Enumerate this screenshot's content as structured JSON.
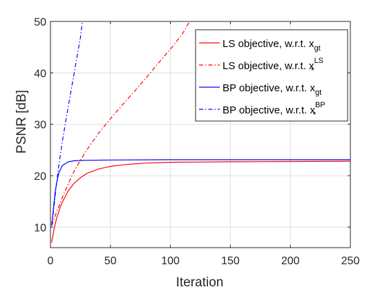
{
  "chart_data": {
    "type": "line",
    "xlabel": "Iteration",
    "ylabel": "PSNR [dB]",
    "xlim": [
      0,
      250
    ],
    "ylim": [
      6,
      50
    ],
    "xticks": [
      0,
      50,
      100,
      150,
      200,
      250
    ],
    "yticks": [
      10,
      20,
      30,
      40,
      50
    ],
    "xtick_labels": [
      "0",
      "50",
      "100",
      "150",
      "200",
      "250"
    ],
    "ytick_labels": [
      "10",
      "20",
      "30",
      "40",
      "50"
    ],
    "grid": true,
    "legend_position": "top-right",
    "series": [
      {
        "name": "LS objective, w.r.t. x_gt",
        "legend_text": "LS objective, w.r.t. x",
        "legend_sub": "gt",
        "legend_sup": "",
        "color": "#ff0000",
        "style": "solid",
        "x": [
          1,
          2,
          3,
          5,
          8,
          10,
          15,
          20,
          25,
          30,
          40,
          50,
          60,
          70,
          80,
          100,
          120,
          150,
          200,
          250
        ],
        "y": [
          7.0,
          8.3,
          9.6,
          11.6,
          13.8,
          14.9,
          17.1,
          18.6,
          19.6,
          20.4,
          21.3,
          21.8,
          22.1,
          22.3,
          22.45,
          22.6,
          22.65,
          22.7,
          22.75,
          22.8
        ]
      },
      {
        "name": "LS objective, w.r.t. x*^LS",
        "legend_text": "LS objective, w.r.t. x",
        "legend_sub": "*",
        "legend_sup": "LS",
        "color": "#ff0000",
        "style": "dashdot",
        "x": [
          1,
          2,
          3,
          5,
          8,
          10,
          15,
          20,
          25,
          30,
          40,
          50,
          60,
          70,
          80,
          90,
          100,
          110,
          116
        ],
        "y": [
          10.3,
          10.9,
          11.6,
          12.9,
          14.6,
          15.8,
          18.5,
          21.0,
          23.0,
          24.9,
          28.2,
          31.1,
          33.8,
          36.4,
          39.1,
          41.9,
          44.6,
          47.6,
          50.0
        ]
      },
      {
        "name": "BP objective, w.r.t. x_gt",
        "legend_text": "BP objective, w.r.t. x",
        "legend_sub": "gt",
        "legend_sup": "",
        "color": "#0000ff",
        "style": "solid",
        "x": [
          1,
          2,
          3,
          4,
          5,
          7,
          10,
          15,
          20,
          30,
          50,
          100,
          150,
          200,
          250
        ],
        "y": [
          10.2,
          12.4,
          14.8,
          16.9,
          18.4,
          20.6,
          22.0,
          22.7,
          22.9,
          23.0,
          23.05,
          23.1,
          23.1,
          23.1,
          23.1
        ]
      },
      {
        "name": "BP objective, w.r.t. x*^BP",
        "legend_text": "BP objective, w.r.t. x",
        "legend_sub": "*",
        "legend_sup": "BP",
        "color": "#0000ff",
        "style": "dashdot",
        "x": [
          1,
          2,
          3,
          4,
          5,
          7,
          10,
          13,
          16,
          19,
          22,
          25,
          26.5
        ],
        "y": [
          10.6,
          12.0,
          14.0,
          16.2,
          18.3,
          22.1,
          26.8,
          31.0,
          35.0,
          39.0,
          42.9,
          46.9,
          49.8
        ]
      }
    ]
  }
}
